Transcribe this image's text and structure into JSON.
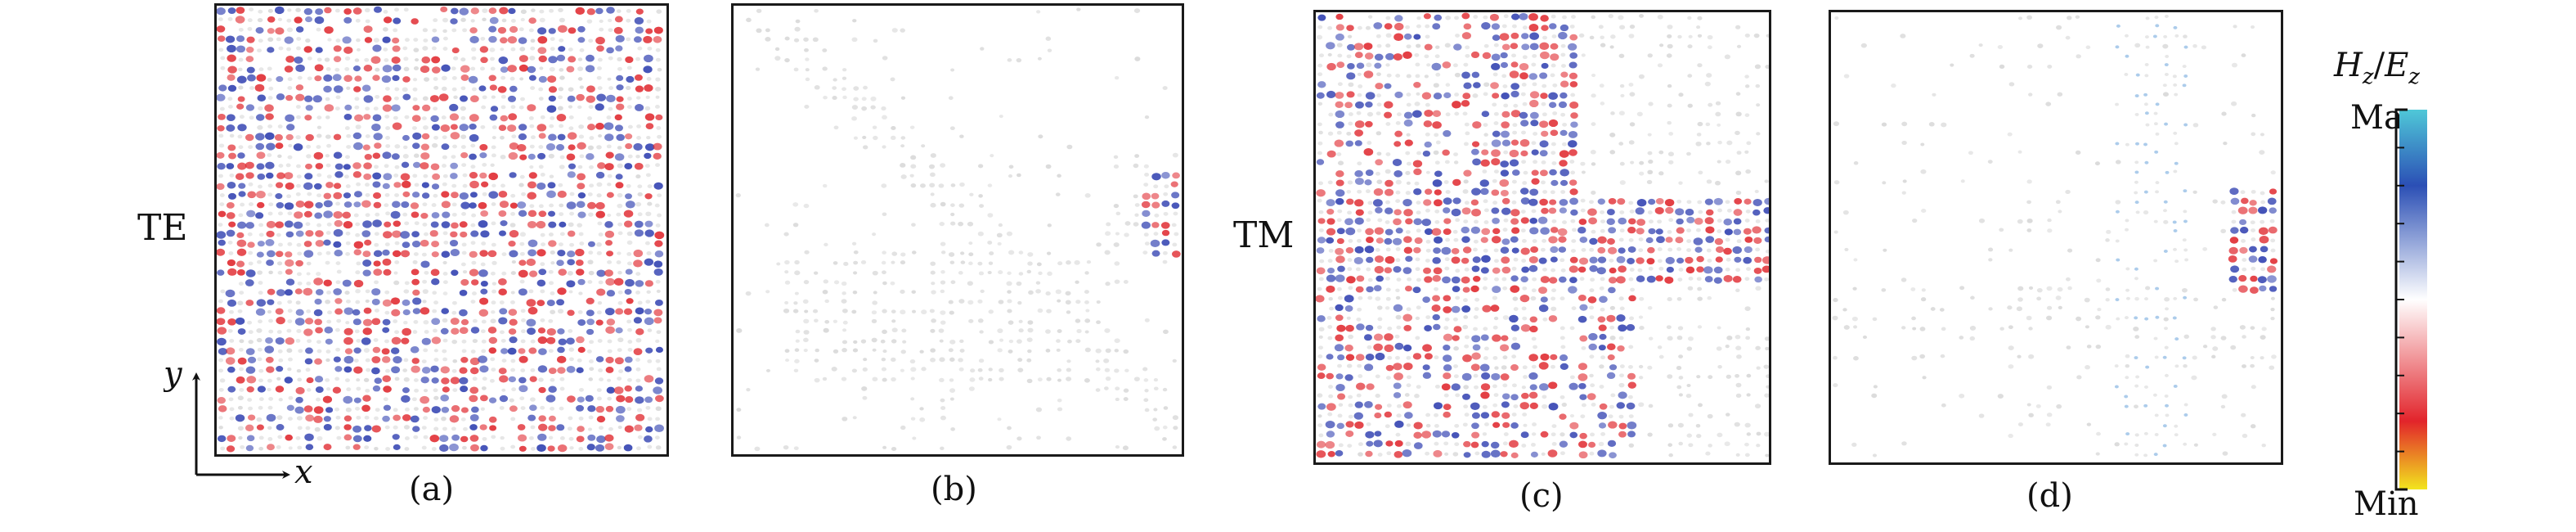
{
  "panels": [
    {
      "id": "a",
      "caption": "(a)"
    },
    {
      "id": "b",
      "caption": "(b)"
    },
    {
      "id": "c",
      "caption": "(c)"
    },
    {
      "id": "d",
      "caption": "(d)"
    }
  ],
  "mode_labels": {
    "te": "TE",
    "tm": "TM"
  },
  "axes": {
    "x": "x",
    "y": "y"
  },
  "colorbar": {
    "title_h": "H",
    "title_sub_h": "z",
    "title_sep": "/",
    "title_e": "E",
    "title_sub_e": "z",
    "max_label": "Max",
    "min_label": "Min",
    "colors": [
      "#4fc8d8",
      "#2b4fb5",
      "#ffffff",
      "#e2242b",
      "#f2e51e"
    ]
  }
}
